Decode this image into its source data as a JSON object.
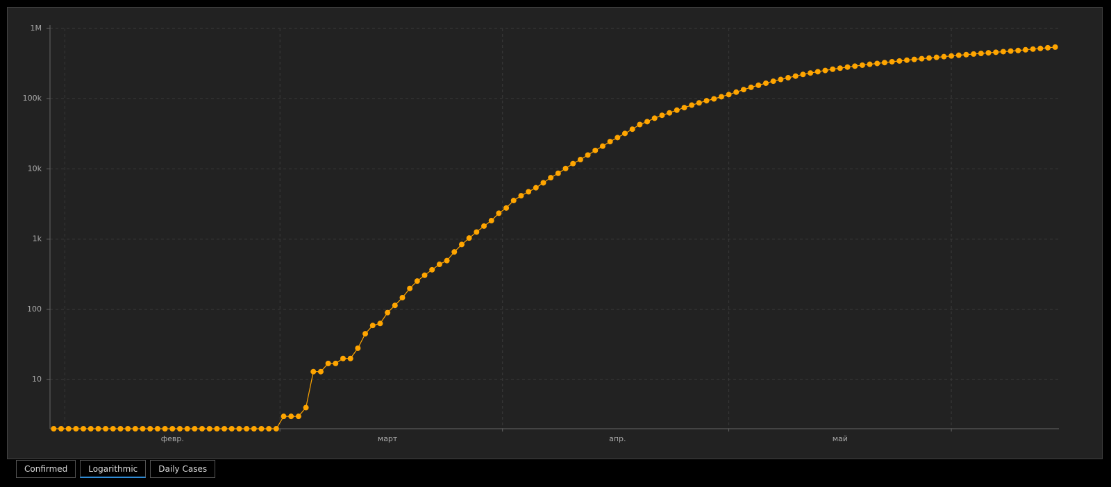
{
  "chart_data": {
    "type": "line",
    "log_scale": true,
    "grid": true,
    "color": "#ffa500",
    "categories": [
      null,
      null,
      null,
      null,
      null,
      null,
      null,
      null,
      null,
      null,
      null,
      null,
      null,
      null,
      null,
      null,
      "февр.",
      null,
      null,
      null,
      null,
      null,
      null,
      null,
      null,
      null,
      null,
      null,
      null,
      null,
      null,
      null,
      null,
      null,
      null,
      null,
      null,
      null,
      null,
      null,
      null,
      null,
      null,
      null,
      null,
      "март",
      null,
      null,
      null,
      null,
      null,
      null,
      null,
      null,
      null,
      null,
      null,
      null,
      null,
      null,
      null,
      null,
      null,
      null,
      null,
      null,
      null,
      null,
      null,
      null,
      null,
      null,
      null,
      null,
      null,
      null,
      "апр.",
      null,
      null,
      null,
      null,
      null,
      null,
      null,
      null,
      null,
      null,
      null,
      null,
      null,
      null,
      null,
      null,
      null,
      null,
      null,
      null,
      null,
      null,
      null,
      null,
      null,
      null,
      null,
      null,
      null,
      "май",
      null,
      null,
      null,
      null,
      null,
      null,
      null,
      null,
      null,
      null,
      null,
      null,
      null,
      null,
      null,
      null,
      null,
      null,
      null,
      null,
      null,
      null,
      null,
      null,
      null,
      null,
      null,
      null,
      null
    ],
    "values": [
      2,
      2,
      2,
      2,
      2,
      2,
      2,
      2,
      2,
      2,
      2,
      2,
      2,
      2,
      2,
      2,
      2,
      2,
      2,
      2,
      2,
      2,
      2,
      2,
      2,
      2,
      2,
      2,
      2,
      2,
      2,
      3,
      3,
      3,
      4,
      13,
      13,
      17,
      17,
      20,
      20,
      28,
      45,
      59,
      63,
      90,
      114,
      147,
      199,
      253,
      306,
      367,
      438,
      495,
      658,
      840,
      1036,
      1264,
      1534,
      1836,
      2337,
      2777,
      3548,
      4149,
      4731,
      5389,
      6343,
      7497,
      8672,
      10131,
      11917,
      13584,
      15770,
      18328,
      21102,
      24490,
      27938,
      32008,
      36793,
      42853,
      47121,
      52763,
      57999,
      62773,
      68622,
      74588,
      80949,
      87147,
      93558,
      99399,
      106498,
      114431,
      124054,
      134686,
      145268,
      155370,
      165929,
      177160,
      187859,
      198676,
      209688,
      221344,
      232243,
      242271,
      252245,
      262843,
      272043,
      281752,
      290678,
      299941,
      308705,
      317554,
      326448,
      335882,
      344481,
      353427,
      362342,
      370680,
      379051,
      387623,
      396575,
      405843,
      414878,
      423741,
      432277,
      441108,
      449834,
      458102,
      467073,
      476043,
      485253,
      496452,
      507929,
      519458,
      530910,
      542186
    ],
    "ylim": [
      2,
      1000000
    ],
    "yticks": [
      10,
      100,
      {
        "value": 1000,
        "label": "1k"
      },
      {
        "value": 10000,
        "label": "10k"
      },
      {
        "value": 100000,
        "label": "100k"
      },
      {
        "value": 1000000,
        "label": "1M"
      }
    ]
  },
  "buttons": [
    {
      "label": "Confirmed",
      "active": false
    },
    {
      "label": "Logarithmic",
      "active": true
    },
    {
      "label": "Daily Cases",
      "active": false
    }
  ]
}
